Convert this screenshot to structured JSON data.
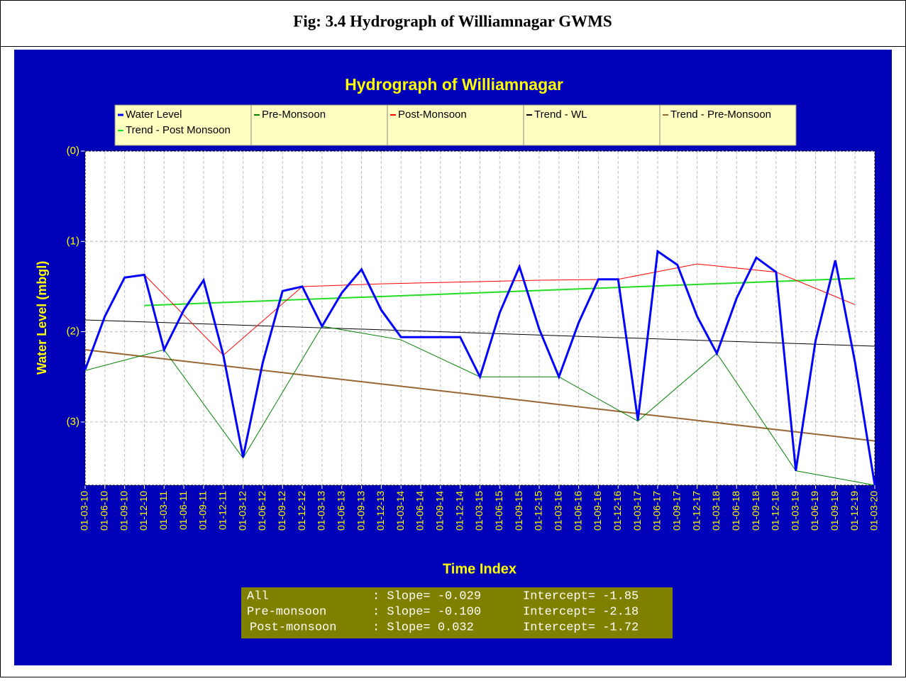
{
  "caption": "Fig: 3.4 Hydrograph of Williamnagar GWMS",
  "chart_data": {
    "type": "line",
    "title": "Hydrograph of Williamnagar",
    "y_label": "Water Level (mbgl)",
    "x_label": "Time Index",
    "categories": [
      "01-03-10",
      "01-06-10",
      "01-09-10",
      "01-12-10",
      "01-03-11",
      "01-06-11",
      "01-09-11",
      "01-12-11",
      "01-03-12",
      "01-06-12",
      "01-09-12",
      "01-12-12",
      "01-03-13",
      "01-06-13",
      "01-09-13",
      "01-12-13",
      "01-03-14",
      "01-06-14",
      "01-09-14",
      "01-12-14",
      "01-03-15",
      "01-06-15",
      "01-09-15",
      "01-12-15",
      "01-03-16",
      "01-06-16",
      "01-09-16",
      "01-12-16",
      "01-03-17",
      "01-06-17",
      "01-09-17",
      "01-12-17",
      "01-03-18",
      "01-06-18",
      "01-09-18",
      "01-12-18",
      "01-03-19",
      "01-06-19",
      "01-09-19",
      "01-12-19",
      "01-03-20"
    ],
    "ylim": [
      -3.7,
      0
    ],
    "yticks": [
      {
        "value": 0,
        "label": "(0)"
      },
      {
        "value": -1,
        "label": "(1)"
      },
      {
        "value": -2,
        "label": "(2)"
      },
      {
        "value": -3,
        "label": "(3)"
      }
    ],
    "grid": true,
    "series": [
      {
        "name": "Water Level",
        "color": "#0000ff",
        "width": 3,
        "values": [
          -2.42,
          -1.83,
          -1.4,
          -1.37,
          -2.2,
          -1.76,
          -1.43,
          -2.26,
          -3.39,
          -2.34,
          -1.55,
          -1.5,
          -1.94,
          -1.57,
          -1.31,
          -1.76,
          -2.06,
          -2.06,
          -2.06,
          -2.06,
          -2.5,
          -1.79,
          -1.28,
          -1.97,
          -2.5,
          -1.9,
          -1.42,
          -1.42,
          -2.98,
          -1.11,
          -1.26,
          -1.83,
          -2.24,
          -1.63,
          -1.18,
          -1.34,
          -3.54,
          -2.1,
          -1.21,
          -2.34,
          -3.7
        ]
      },
      {
        "name": "Pre-Monsoon",
        "color": "#008000",
        "width": 1,
        "x": [
          "01-03-10",
          "01-03-11",
          "01-03-12",
          "01-03-13",
          "01-03-14",
          "01-03-15",
          "01-03-16",
          "01-03-17",
          "01-03-18",
          "01-03-19",
          "01-03-20"
        ],
        "values": [
          -2.43,
          -2.2,
          -3.4,
          -1.94,
          -2.09,
          -2.5,
          -2.5,
          -2.99,
          -2.24,
          -3.54,
          -3.7
        ]
      },
      {
        "name": "Post-Monsoon",
        "color": "#ff0000",
        "width": 1,
        "x": [
          "01-12-10",
          "01-12-11",
          "01-12-12",
          "01-12-13",
          "01-12-14",
          "01-12-15",
          "01-12-16",
          "01-12-17",
          "01-12-18",
          "01-12-19"
        ],
        "values": [
          -1.37,
          -2.26,
          -1.5,
          -1.47,
          -1.45,
          -1.43,
          -1.42,
          -1.25,
          -1.34,
          -1.7
        ]
      },
      {
        "name": "Trend - WL",
        "color": "#000000",
        "width": 1,
        "x": [
          "01-03-10",
          "01-03-20"
        ],
        "values": [
          -1.87,
          -2.16
        ]
      },
      {
        "name": "Trend - Pre-Monsoon",
        "color": "#996633",
        "width": 2,
        "x": [
          "01-03-10",
          "01-03-20"
        ],
        "values": [
          -2.2,
          -3.21
        ]
      },
      {
        "name": "Trend - Post Monsoon",
        "color": "#22dd22",
        "width": 2,
        "x": [
          "01-12-10",
          "01-12-19"
        ],
        "values": [
          -1.71,
          -1.41
        ]
      }
    ],
    "stats": [
      [
        "All",
        ": Slope= -0.029",
        "Intercept= -1.85"
      ],
      [
        "Pre-monsoon",
        ": Slope= -0.100",
        "Intercept= -2.18"
      ],
      [
        "Post-monsoon",
        ": Slope= 0.032",
        "Intercept= -1.72"
      ]
    ]
  }
}
